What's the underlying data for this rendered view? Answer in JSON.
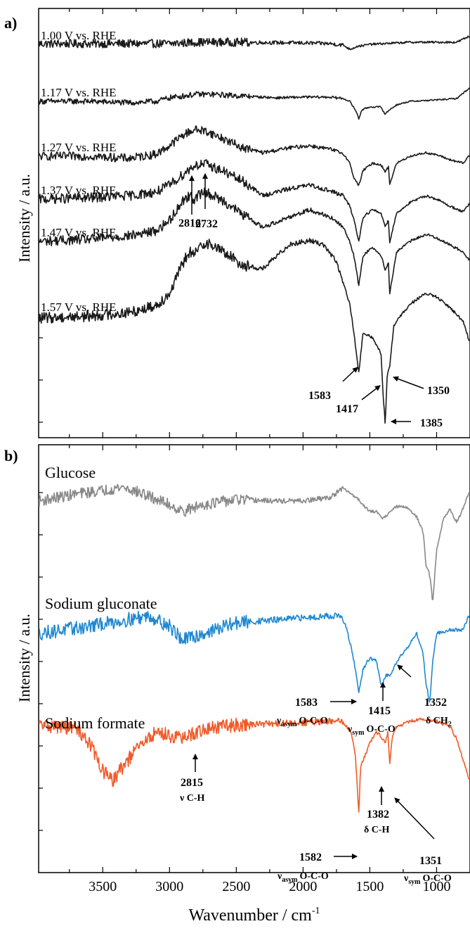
{
  "figure": {
    "x_axis_label": "Wavenumber / cm",
    "x_axis_label_sup": "-1",
    "x_ticks": [
      "3500",
      "3000",
      "2500",
      "2000",
      "1500",
      "1000"
    ]
  },
  "chart_data": [
    {
      "type": "line",
      "panel_label": "a)",
      "ylabel": "Intensity / a.u.",
      "xlim": [
        3980,
        750
      ],
      "x_reversed": true,
      "grid": false,
      "series": [
        {
          "name": "1.00 V vs. RHE",
          "color": "#1a1a1a",
          "noise": 6,
          "offset": 0,
          "x": [
            3980,
            3600,
            3300,
            3100,
            3000,
            2800,
            2500,
            2000,
            1800,
            1700,
            1650,
            1620,
            1600,
            1560,
            1500,
            1400,
            1200,
            1000,
            850,
            760
          ],
          "y": [
            0,
            0,
            0,
            0,
            0,
            2,
            2,
            1,
            0,
            -2,
            -8,
            -6,
            -4,
            -3,
            -1,
            0,
            2,
            2,
            2,
            10
          ]
        },
        {
          "name": "1.17 V vs. RHE",
          "color": "#1a1a1a",
          "noise": 4,
          "offset": -82,
          "x": [
            3980,
            3600,
            3300,
            3100,
            3000,
            2800,
            2700,
            2500,
            2200,
            2000,
            1800,
            1700,
            1650,
            1600,
            1583,
            1560,
            1500,
            1420,
            1385,
            1352,
            1300,
            1200,
            1000,
            850,
            760
          ],
          "y": [
            0,
            0,
            -2,
            0,
            5,
            10,
            10,
            8,
            5,
            6,
            6,
            4,
            0,
            -15,
            -25,
            -12,
            -8,
            -8,
            -18,
            -12,
            -5,
            0,
            2,
            4,
            18
          ]
        },
        {
          "name": "1.27 V vs. RHE",
          "color": "#1a1a1a",
          "noise": 6,
          "offset": -150,
          "x": [
            3980,
            3600,
            3300,
            3100,
            3000,
            2900,
            2816,
            2732,
            2600,
            2450,
            2300,
            2100,
            1950,
            1800,
            1700,
            1650,
            1620,
            1583,
            1550,
            1480,
            1417,
            1385,
            1360,
            1352,
            1300,
            1200,
            1080,
            1000,
            900,
            800,
            760
          ],
          "y": [
            0,
            0,
            -3,
            3,
            15,
            30,
            38,
            36,
            25,
            12,
            5,
            12,
            15,
            10,
            4,
            -10,
            -30,
            -42,
            -20,
            -10,
            -12,
            -22,
            -15,
            -40,
            -10,
            0,
            5,
            2,
            -5,
            -10,
            0
          ]
        },
        {
          "name": "1.37 V vs. RHE",
          "color": "#1a1a1a",
          "noise": 7,
          "offset": -222,
          "x": [
            3980,
            3600,
            3300,
            3100,
            3000,
            2900,
            2816,
            2732,
            2600,
            2450,
            2300,
            2100,
            1950,
            1800,
            1700,
            1650,
            1620,
            1583,
            1550,
            1480,
            1417,
            1385,
            1360,
            1352,
            1300,
            1200,
            1080,
            1000,
            900,
            800,
            760
          ],
          "y": [
            0,
            2,
            5,
            10,
            20,
            35,
            48,
            50,
            40,
            25,
            5,
            15,
            20,
            12,
            5,
            -10,
            -28,
            -60,
            -25,
            -15,
            -20,
            -38,
            -30,
            -62,
            -20,
            -5,
            5,
            0,
            -10,
            -18,
            -8
          ]
        },
        {
          "name": "1.47 V vs. RHE",
          "color": "#1a1a1a",
          "noise": 7,
          "offset": -292,
          "x": [
            3980,
            3600,
            3300,
            3100,
            3000,
            2900,
            2850,
            2816,
            2780,
            2732,
            2600,
            2450,
            2300,
            2100,
            1950,
            1800,
            1700,
            1650,
            1620,
            1583,
            1550,
            1480,
            1417,
            1385,
            1360,
            1352,
            1300,
            1200,
            1080,
            1000,
            900,
            800,
            760
          ],
          "y": [
            0,
            3,
            8,
            15,
            30,
            58,
            65,
            60,
            66,
            70,
            58,
            38,
            20,
            35,
            45,
            35,
            20,
            0,
            -20,
            -62,
            -20,
            -8,
            -20,
            -40,
            -30,
            -75,
            -15,
            0,
            10,
            5,
            -5,
            -15,
            -25
          ]
        },
        {
          "name": "1.57 V vs. RHE",
          "color": "#1a1a1a",
          "noise": 8,
          "offset": -375,
          "x": [
            3980,
            3600,
            3300,
            3100,
            3000,
            2900,
            2850,
            2816,
            2780,
            2732,
            2600,
            2450,
            2300,
            2100,
            1950,
            1850,
            1750,
            1700,
            1650,
            1620,
            1583,
            1550,
            1480,
            1417,
            1400,
            1385,
            1370,
            1352,
            1320,
            1200,
            1080,
            1000,
            900,
            800,
            760
          ],
          "y": [
            0,
            3,
            8,
            18,
            35,
            78,
            95,
            88,
            100,
            108,
            95,
            75,
            70,
            105,
            110,
            105,
            80,
            50,
            20,
            -20,
            -78,
            -20,
            -28,
            -50,
            -110,
            -150,
            -80,
            -70,
            -10,
            20,
            35,
            30,
            15,
            -5,
            -30
          ]
        }
      ],
      "annotations": [
        {
          "text": "2816"
        },
        {
          "text": "2732"
        },
        {
          "text": "1583"
        },
        {
          "text": "1417"
        },
        {
          "text": "1350"
        },
        {
          "text": "1385"
        }
      ]
    },
    {
      "type": "line",
      "panel_label": "b)",
      "ylabel": "Intensity / a.u.",
      "xlim": [
        3980,
        750
      ],
      "x_reversed": true,
      "grid": false,
      "series": [
        {
          "name": "Glucose",
          "color": "#888888",
          "noise": 8,
          "offset": 0,
          "x": [
            3980,
            3700,
            3500,
            3350,
            3200,
            3000,
            2900,
            2750,
            2500,
            2200,
            2000,
            1800,
            1700,
            1600,
            1500,
            1450,
            1400,
            1350,
            1300,
            1250,
            1200,
            1150,
            1100,
            1080,
            1060,
            1040,
            1030,
            1000,
            950,
            900,
            850,
            800,
            760
          ],
          "y": [
            0,
            10,
            15,
            20,
            10,
            -5,
            -15,
            -5,
            2,
            0,
            0,
            5,
            18,
            5,
            -15,
            -15,
            -25,
            -15,
            -8,
            -8,
            -12,
            -22,
            -45,
            -90,
            -100,
            -120,
            -145,
            -70,
            -25,
            -12,
            -30,
            -10,
            10
          ]
        },
        {
          "name": "Sodium gluconate",
          "color": "#1e88d1",
          "noise": 10,
          "offset": -185,
          "x": [
            3980,
            3600,
            3300,
            3150,
            3000,
            2900,
            2500,
            2000,
            1800,
            1720,
            1680,
            1640,
            1600,
            1583,
            1550,
            1500,
            1450,
            1415,
            1380,
            1350,
            1300,
            1200,
            1150,
            1100,
            1080,
            1060,
            1052,
            1030,
            1000,
            900,
            800,
            760
          ],
          "y": [
            0,
            10,
            20,
            25,
            10,
            -10,
            15,
            22,
            25,
            25,
            10,
            -20,
            -60,
            -85,
            -50,
            -35,
            -40,
            -75,
            -60,
            -60,
            -40,
            -15,
            0,
            -30,
            -70,
            -90,
            -100,
            -40,
            0,
            5,
            5,
            25
          ]
        },
        {
          "name": "Sodium formate",
          "color": "#f05a28",
          "noise": 10,
          "offset": -340,
          "x": [
            3980,
            3700,
            3600,
            3500,
            3430,
            3350,
            3250,
            3100,
            2900,
            2815,
            2700,
            2500,
            2000,
            1800,
            1720,
            1680,
            1640,
            1610,
            1590,
            1582,
            1570,
            1500,
            1450,
            1400,
            1382,
            1365,
            1351,
            1330,
            1300,
            1200,
            1100,
            1000,
            900,
            850,
            800,
            760
          ],
          "y": [
            0,
            -5,
            -25,
            -65,
            -80,
            -60,
            -35,
            -10,
            -20,
            -12,
            -5,
            0,
            3,
            5,
            5,
            0,
            -12,
            -40,
            -100,
            -125,
            -60,
            -25,
            -10,
            -20,
            -25,
            -10,
            -55,
            -15,
            -3,
            5,
            8,
            5,
            -2,
            -20,
            -50,
            -75
          ]
        }
      ],
      "annotations": [
        {
          "text": "1583"
        },
        {
          "text": "ν",
          "sub": "asym",
          "tail": "O-C-O"
        },
        {
          "text": "1415"
        },
        {
          "text": "ν",
          "sub": "sym",
          "tail": "O-C-O"
        },
        {
          "text": "1352"
        },
        {
          "text": "δ CH",
          "sub": "2"
        },
        {
          "text": "2815"
        },
        {
          "text": "ν C-H"
        },
        {
          "text": "1582"
        },
        {
          "text": "ν",
          "sub": "asym",
          "tail": "O-C-O"
        },
        {
          "text": "1382"
        },
        {
          "text": "δ C-H"
        },
        {
          "text": "1351"
        },
        {
          "text": "ν",
          "sub": "sym",
          "tail": "O-C-O"
        }
      ]
    }
  ]
}
